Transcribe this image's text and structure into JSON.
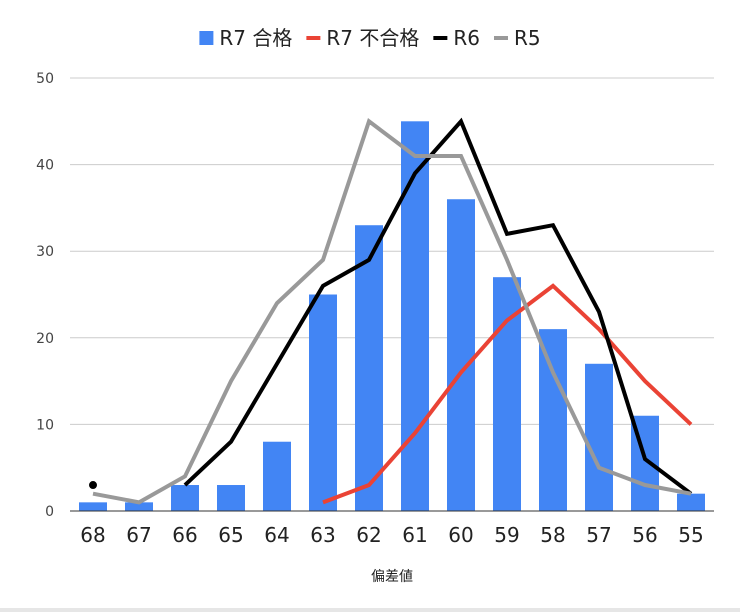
{
  "chart_data": {
    "type": "bar",
    "title": "",
    "xlabel": "偏差値",
    "ylabel": "",
    "ylim": [
      0,
      50
    ],
    "yticks": [
      0,
      10,
      20,
      30,
      40,
      50
    ],
    "grid": true,
    "legend_position": "top",
    "categories": [
      "68",
      "67",
      "66",
      "65",
      "64",
      "63",
      "62",
      "61",
      "60",
      "59",
      "58",
      "57",
      "56",
      "55"
    ],
    "series": [
      {
        "name": "R7 合格",
        "type": "bar",
        "color": "#4285f4",
        "values": [
          1,
          1,
          3,
          3,
          8,
          25,
          33,
          45,
          36,
          27,
          21,
          17,
          11,
          2
        ]
      },
      {
        "name": "R7 不合格",
        "type": "line",
        "color": "#ea4335",
        "values": [
          null,
          null,
          null,
          null,
          null,
          1,
          3,
          9,
          16,
          22,
          26,
          21,
          15,
          10
        ]
      },
      {
        "name": "R6",
        "type": "line",
        "color": "#000000",
        "values": [
          3,
          null,
          3,
          8,
          17,
          26,
          29,
          39,
          45,
          32,
          33,
          23,
          6,
          2
        ]
      },
      {
        "name": "R5",
        "type": "line",
        "color": "#999999",
        "values": [
          2,
          1,
          4,
          15,
          24,
          29,
          45,
          41,
          41,
          29,
          16,
          5,
          3,
          2
        ]
      }
    ]
  }
}
